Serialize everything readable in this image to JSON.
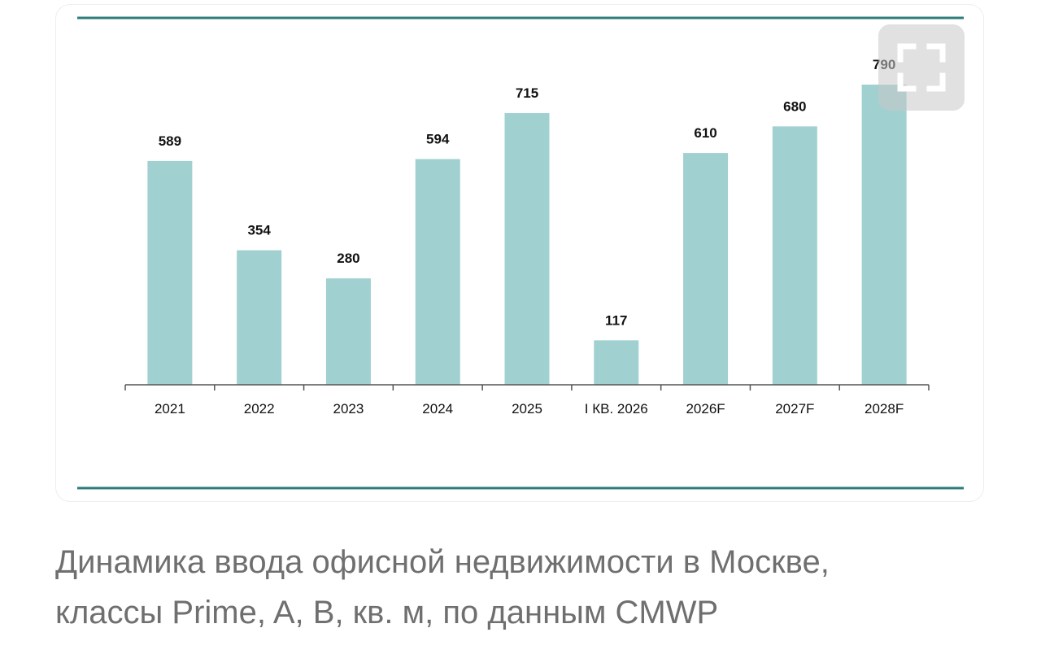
{
  "caption": {
    "line1": "Динамика ввода офисной недвижимости в Москве,",
    "line2": "классы Prime, A, B, кв. м, по данным CMWP"
  },
  "colors": {
    "bar": "#a1d0d0",
    "rule": "#2f7c7c",
    "axis": "#555555",
    "label": "#111111",
    "caption": "#6f6f6f"
  },
  "expand_button": {
    "icon": "fullscreen-icon"
  },
  "chart_data": {
    "type": "bar",
    "categories": [
      "2021",
      "2022",
      "2023",
      "2024",
      "2025",
      "I КВ. 2026",
      "2026F",
      "2027F",
      "2028F"
    ],
    "values": [
      589,
      354,
      280,
      594,
      715,
      117,
      610,
      680,
      790
    ],
    "data_labels": [
      "589",
      "354",
      "280",
      "594",
      "715",
      "117",
      "610",
      "680",
      "790"
    ],
    "title": "",
    "xlabel": "",
    "ylabel": "",
    "ylim": [
      0,
      790
    ],
    "grid": false,
    "legend": "none"
  }
}
